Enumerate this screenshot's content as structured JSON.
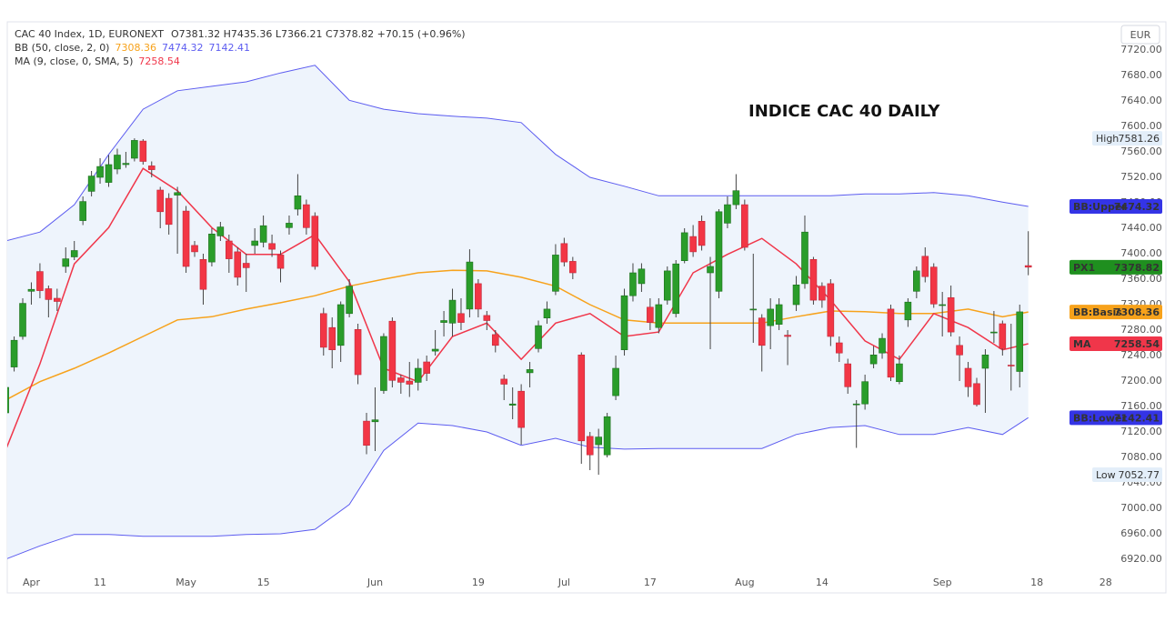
{
  "chart_data": {
    "type": "candlestick",
    "title": "INDICE CAC 40 DAILY",
    "header": {
      "symbol": "CAC 40 Index, 1D, EURONEXT",
      "ohlc": "O7381.32 H7435.36 L7366.21 C7378.82 +70.15 (+0.96%)"
    },
    "indicators": [
      {
        "label": "BB (50, close, 2, 0)",
        "values": [
          7308.36,
          7474.32,
          7142.41
        ],
        "colors": [
          "#f7a21b",
          "#5c5cf0",
          "#5c5cf0"
        ]
      },
      {
        "label": "MA (9, close, 0, SMA, 5)",
        "values": [
          7258.54
        ],
        "colors": [
          "#f0364a"
        ]
      }
    ],
    "currency": "EUR",
    "up_color": "#2a9d2a",
    "down_color": "#f23645",
    "x": [
      0,
      1,
      2,
      3,
      4,
      5,
      6,
      7,
      8,
      9,
      10,
      11,
      12,
      13,
      14,
      15,
      16,
      17,
      18,
      19,
      20,
      21,
      22,
      23,
      24,
      25,
      26,
      27,
      28,
      29,
      30,
      31,
      32,
      33,
      34,
      35,
      36,
      37,
      38,
      39,
      40,
      41,
      42,
      43,
      44,
      45,
      46,
      47,
      48,
      49,
      50,
      51,
      52,
      53,
      54,
      55,
      56,
      57,
      58,
      59,
      60,
      61,
      62,
      63,
      64,
      65,
      66,
      67,
      68,
      69,
      70,
      71,
      72,
      73,
      74,
      75,
      76,
      77,
      78,
      79,
      80,
      81,
      82,
      83,
      84,
      85,
      86,
      87,
      88,
      89,
      90,
      91,
      92,
      93,
      94,
      95,
      96,
      97,
      98,
      99,
      100,
      101,
      102,
      103,
      104,
      105,
      106,
      107,
      108,
      109,
      110,
      111,
      112,
      113,
      114,
      115,
      116,
      117,
      118,
      119
    ],
    "open": [
      7150,
      7222,
      7270,
      7341,
      7372,
      7345,
      7330,
      7380,
      7395,
      7452,
      7498,
      7520,
      7512,
      7533,
      7540,
      7550,
      7577,
      7538,
      7500,
      7487,
      7492,
      7467,
      7413,
      7391,
      7387,
      7428,
      7420,
      7403,
      7385,
      7413,
      7418,
      7416,
      7398,
      7441,
      7470,
      7477,
      7459,
      7306,
      7284,
      7256,
      7306,
      7281,
      7137,
      7136,
      7185,
      7294,
      7205,
      7200,
      7198,
      7230,
      7247,
      7292,
      7291,
      7306,
      7313,
      7353,
      7303,
      7273,
      7203,
      7162,
      7184,
      7213,
      7251,
      7299,
      7341,
      7416,
      7388,
      7241,
      7113,
      7100,
      7084,
      7177,
      7249,
      7334,
      7353,
      7316,
      7284,
      7327,
      7306,
      7389,
      7427,
      7451,
      7370,
      7341,
      7448,
      7477,
      7477,
      7312,
      7299,
      7287,
      7289,
      7272,
      7320,
      7353,
      7391,
      7349,
      7353,
      7260,
      7227,
      7164,
      7164,
      7227,
      7244,
      7313,
      7199,
      7296,
      7341,
      7396,
      7379,
      7320,
      7331,
      7256,
      7220,
      7196,
      7220,
      7277,
      7290,
      7225,
      7215,
      7381.32
    ],
    "high": [
      7195,
      7270,
      7330,
      7355,
      7385,
      7350,
      7345,
      7410,
      7420,
      7490,
      7530,
      7550,
      7555,
      7565,
      7560,
      7581.26,
      7580,
      7545,
      7505,
      7495,
      7505,
      7475,
      7420,
      7400,
      7440,
      7450,
      7430,
      7410,
      7400,
      7440,
      7460,
      7430,
      7405,
      7460,
      7525,
      7485,
      7465,
      7315,
      7300,
      7325,
      7360,
      7290,
      7150,
      7190,
      7275,
      7300,
      7210,
      7230,
      7235,
      7240,
      7280,
      7310,
      7345,
      7330,
      7407,
      7360,
      7310,
      7280,
      7210,
      7190,
      7195,
      7230,
      7295,
      7325,
      7415,
      7425,
      7395,
      7245,
      7120,
      7125,
      7150,
      7240,
      7345,
      7385,
      7385,
      7330,
      7330,
      7380,
      7390,
      7440,
      7445,
      7460,
      7395,
      7470,
      7490,
      7525,
      7485,
      7400,
      7305,
      7330,
      7330,
      7280,
      7365,
      7460,
      7395,
      7355,
      7360,
      7270,
      7235,
      7170,
      7210,
      7255,
      7275,
      7320,
      7240,
      7330,
      7380,
      7410,
      7385,
      7340,
      7350,
      7270,
      7230,
      7205,
      7250,
      7310,
      7295,
      7290,
      7320,
      7435.36
    ],
    "low": [
      7140,
      7215,
      7265,
      7320,
      7330,
      7300,
      7310,
      7370,
      7390,
      7445,
      7490,
      7510,
      7505,
      7525,
      7535,
      7545,
      7540,
      7520,
      7440,
      7430,
      7400,
      7370,
      7395,
      7320,
      7380,
      7420,
      7370,
      7350,
      7340,
      7400,
      7410,
      7395,
      7355,
      7430,
      7460,
      7430,
      7375,
      7240,
      7220,
      7230,
      7300,
      7195,
      7085,
      7090,
      7180,
      7190,
      7180,
      7175,
      7185,
      7200,
      7240,
      7270,
      7270,
      7280,
      7300,
      7300,
      7280,
      7245,
      7170,
      7140,
      7100,
      7190,
      7245,
      7290,
      7335,
      7380,
      7360,
      7070,
      7060,
      7052.77,
      7080,
      7170,
      7240,
      7325,
      7340,
      7280,
      7275,
      7320,
      7300,
      7385,
      7395,
      7405,
      7250,
      7330,
      7440,
      7470,
      7405,
      7260,
      7215,
      7250,
      7280,
      7225,
      7310,
      7345,
      7320,
      7315,
      7255,
      7230,
      7180,
      7095,
      7155,
      7220,
      7235,
      7200,
      7195,
      7285,
      7330,
      7355,
      7315,
      7270,
      7270,
      7200,
      7175,
      7160,
      7150,
      7260,
      7240,
      7185,
      7190,
      7366.21
    ],
    "close": [
      7190,
      7264,
      7322,
      7344,
      7342,
      7328,
      7325,
      7392,
      7405,
      7482,
      7522,
      7537,
      7540,
      7555,
      7542,
      7578,
      7545,
      7532,
      7466,
      7446,
      7496,
      7380,
      7403,
      7344,
      7431,
      7442,
      7392,
      7363,
      7378,
      7420,
      7444,
      7407,
      7377,
      7448,
      7491,
      7441,
      7380,
      7253,
      7249,
      7320,
      7349,
      7210,
      7099,
      7139,
      7270,
      7201,
      7198,
      7195,
      7220,
      7212,
      7250,
      7295,
      7327,
      7292,
      7387,
      7313,
      7295,
      7256,
      7195,
      7164,
      7127,
      7218,
      7287,
      7313,
      7398,
      7387,
      7370,
      7106,
      7084,
      7112,
      7144,
      7220,
      7334,
      7370,
      7376,
      7292,
      7320,
      7373,
      7384,
      7433,
      7403,
      7413,
      7380,
      7466,
      7477,
      7499,
      7410,
      7313,
      7256,
      7313,
      7320,
      7270,
      7351,
      7434,
      7327,
      7327,
      7270,
      7244,
      7191,
      7164,
      7199,
      7241,
      7267,
      7206,
      7227,
      7324,
      7373,
      7364,
      7321,
      7320,
      7277,
      7241,
      7191,
      7163,
      7241,
      7277,
      7251,
      7224,
      7308.67,
      7378.82
    ],
    "lines": {
      "x": [
        0,
        4,
        8,
        12,
        16,
        20,
        24,
        28,
        32,
        36,
        40,
        44,
        48,
        52,
        56,
        60,
        64,
        68,
        72,
        76,
        80,
        84,
        88,
        92,
        96,
        100,
        104,
        108,
        112,
        116,
        119
      ],
      "series": [
        {
          "name": "BB:Upper",
          "color": "#5c5cf0",
          "values": [
            7420,
            7434,
            7477,
            7556,
            7627,
            7656,
            7663,
            7670,
            7684,
            7696,
            7641,
            7627,
            7620,
            7616,
            7613,
            7606,
            7556,
            7520,
            7506,
            7491,
            7491,
            7491,
            7491,
            7491,
            7491,
            7494,
            7494,
            7496,
            7491,
            7481,
            7474.32
          ]
        },
        {
          "name": "BB:Basis",
          "color": "#f7a21b",
          "values": [
            7170,
            7199,
            7220,
            7244,
            7270,
            7296,
            7301,
            7313,
            7323,
            7334,
            7349,
            7360,
            7370,
            7374,
            7373,
            7363,
            7349,
            7320,
            7296,
            7291,
            7291,
            7291,
            7291,
            7301,
            7310,
            7309,
            7306,
            7306,
            7313,
            7301,
            7308.36
          ]
        },
        {
          "name": "BB:Lower",
          "color": "#5c5cf0",
          "values": [
            6920,
            6941,
            6959,
            6959,
            6956,
            6956,
            6956,
            6959,
            6960,
            6967,
            7006,
            7091,
            7134,
            7130,
            7120,
            7099,
            7110,
            7096,
            7093,
            7094,
            7094,
            7094,
            7094,
            7116,
            7127,
            7130,
            7116,
            7116,
            7127,
            7116,
            7142.41
          ]
        },
        {
          "name": "MA",
          "color": "#f0364a",
          "values": [
            7091,
            7227,
            7384,
            7441,
            7534,
            7499,
            7441,
            7399,
            7399,
            7430,
            7356,
            7220,
            7199,
            7270,
            7291,
            7234,
            7291,
            7306,
            7270,
            7277,
            7370,
            7399,
            7424,
            7384,
            7327,
            7263,
            7234,
            7306,
            7284,
            7249,
            7258.54
          ]
        }
      ],
      "band_fill": "#eef4fc"
    },
    "price_tags": [
      {
        "name": "High",
        "value": 7581.26,
        "bg": "#e3eef9",
        "fg": "#444444"
      },
      {
        "name": "BB:Upper",
        "value": 7474.32,
        "bg": "#3434e6",
        "fg": "#ffffff"
      },
      {
        "name": "PX1",
        "value": 7378.82,
        "bg": "#1f8f1f",
        "fg": "#ffffff"
      },
      {
        "name": "BB:Basis",
        "value": 7308.36,
        "bg": "#f7a21b",
        "fg": "#ffffff"
      },
      {
        "name": "MA",
        "value": 7258.54,
        "bg": "#f0364a",
        "fg": "#ffffff"
      },
      {
        "name": "BB:Lower",
        "value": 7142.41,
        "bg": "#3434e6",
        "fg": "#ffffff"
      },
      {
        "name": "Low",
        "value": 7052.77,
        "bg": "#e3eef9",
        "fg": "#444444"
      }
    ],
    "xlim": [
      0.2,
      134.8
    ],
    "ylim": [
      6901.43,
      7762.86
    ],
    "xticks": [
      {
        "value": 3,
        "label": "Apr"
      },
      11,
      {
        "value": 21,
        "label": "May"
      },
      {
        "value": 30,
        "label": "15"
      },
      {
        "value": 43,
        "label": "Jun"
      },
      {
        "value": 55,
        "label": "19"
      },
      {
        "value": 65,
        "label": "Jul"
      },
      {
        "value": 75,
        "label": "17"
      },
      {
        "value": 86,
        "label": "Aug"
      },
      {
        "value": 95,
        "label": "14"
      },
      {
        "value": 109,
        "label": "Sep"
      },
      {
        "value": 120,
        "label": "18"
      },
      {
        "value": 128,
        "label": "28"
      }
    ],
    "yticks": [
      {
        "value": 6920,
        "label": "6920.00"
      },
      {
        "value": 6960,
        "label": "6960.00"
      },
      {
        "value": 7000,
        "label": "7000.00"
      },
      {
        "value": 7040,
        "label": "7040.00"
      },
      {
        "value": 7080,
        "label": "7080.00"
      },
      {
        "value": 7120,
        "label": "7120.00"
      },
      {
        "value": 7160,
        "label": "7160.00"
      },
      {
        "value": 7200,
        "label": "7200.00"
      },
      {
        "value": 7240,
        "label": "7240.00"
      },
      {
        "value": 7280,
        "label": "7280.00"
      },
      {
        "value": 7320,
        "label": "7320.00"
      },
      {
        "value": 7360,
        "label": "7360.00"
      },
      {
        "value": 7400,
        "label": "7400.00"
      },
      {
        "value": 7440,
        "label": "7440.00"
      },
      {
        "value": 7480,
        "label": "7480.00"
      },
      {
        "value": 7520,
        "label": "7520.00"
      },
      {
        "value": 7560,
        "label": "7560.00"
      },
      {
        "value": 7600,
        "label": "7600.00"
      },
      {
        "value": 7640,
        "label": "7640.00"
      },
      {
        "value": 7680,
        "label": "7680.00"
      },
      {
        "value": 7720,
        "label": "7720.00"
      }
    ],
    "grid": false
  }
}
